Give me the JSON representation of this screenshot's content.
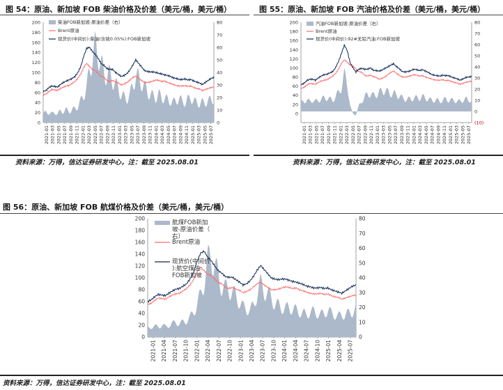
{
  "figures": [
    {
      "title": "图 54：原油、新加坡 FOB 柴油价格及价差（美元/桶，美元/桶）",
      "source": "资料来源：万得，信达证券研发中心，注：截至 2025.08.01"
    },
    {
      "title": "图 55：原油、新加坡 FOB 汽油价格及价差（美元/桶，美元/桶）",
      "source": "资料来源：万得，信达证券研发中心，注：截至 2025.08.01"
    },
    {
      "title": "图 56：原油、新加坡 FOB 航煤价格及价差（美元/桶，美元/桶）",
      "source": "资料来源：万得，信达证券研发中心，注：截至 2025.08.01"
    }
  ],
  "colors": {
    "spread": "#acb9ca",
    "brent": "#ff6b6b",
    "spot": "#0d2654"
  },
  "chart_data": [
    {
      "type": "area",
      "x_ticks": [
        "2021-01",
        "2021-03",
        "2021-05",
        "2021-07",
        "2021-09",
        "2021-11",
        "2022-01",
        "2022-03",
        "2022-05",
        "2022-07",
        "2022-09",
        "2022-11",
        "2023-01",
        "2023-03",
        "2023-05",
        "2023-07",
        "2023-09",
        "2023-11",
        "2024-01",
        "2024-03",
        "2024-05",
        "2024-07",
        "2024-09",
        "2024-11",
        "2025-01",
        "2025-03",
        "2025-05",
        "2025-07"
      ],
      "ylim_left": [
        0,
        200
      ],
      "yticks_left": [
        0,
        20,
        40,
        60,
        80,
        100,
        120,
        140,
        160,
        180,
        200
      ],
      "ylim_right": [
        0,
        80
      ],
      "yticks_right": [
        0,
        10,
        20,
        30,
        40,
        50,
        60,
        70,
        80
      ],
      "legend": [
        "柴油FOB新加坡-原油价差（右）",
        "Brent原油",
        "现货价(中间价):柴油(含硫0.05%):FOB新加坡"
      ],
      "series": [
        {
          "name": "柴油FOB新加坡-原油价差（右）",
          "axis": "right",
          "kind": "area",
          "values": [
            7,
            8,
            8,
            7,
            8,
            7,
            9,
            9,
            10,
            9,
            10,
            11,
            13,
            17,
            22,
            28,
            40,
            52,
            60,
            55,
            46,
            40,
            37,
            38,
            34,
            30,
            27,
            22,
            20,
            19,
            22,
            30,
            37,
            35,
            32,
            28,
            25,
            22,
            21,
            20,
            22,
            20,
            19,
            18,
            17,
            16,
            18,
            19,
            17,
            16,
            18,
            20,
            17,
            16,
            15,
            16,
            16,
            17,
            18,
            19
          ]
        },
        {
          "name": "Brent原油",
          "axis": "left",
          "kind": "line",
          "values": [
            55,
            57,
            62,
            66,
            65,
            64,
            68,
            71,
            73,
            74,
            78,
            82,
            88,
            97,
            110,
            118,
            112,
            106,
            104,
            98,
            92,
            90,
            84,
            82,
            84,
            81,
            79,
            75,
            77,
            80,
            85,
            90,
            93,
            88,
            84,
            80,
            80,
            81,
            83,
            85,
            84,
            82,
            83,
            80,
            78,
            76,
            74,
            73,
            73,
            74,
            72,
            73,
            70,
            68,
            67,
            64,
            66,
            68,
            70,
            71
          ]
        },
        {
          "name": "现货价(中间价):柴油(含硫0.05%):FOB新加坡",
          "axis": "left",
          "kind": "line",
          "values": [
            62,
            64,
            70,
            73,
            72,
            71,
            76,
            80,
            83,
            85,
            88,
            92,
            100,
            112,
            132,
            148,
            150,
            142,
            136,
            128,
            118,
            114,
            108,
            106,
            106,
            100,
            96,
            92,
            94,
            98,
            105,
            115,
            125,
            118,
            111,
            104,
            102,
            101,
            101,
            100,
            98,
            97,
            95,
            94,
            92,
            89,
            88,
            86,
            86,
            87,
            85,
            86,
            83,
            81,
            79,
            76,
            80,
            84,
            88,
            90
          ]
        }
      ]
    },
    {
      "type": "area",
      "x_ticks": [
        "2021-01",
        "2021-03",
        "2021-05",
        "2021-07",
        "2021-09",
        "2021-11",
        "2022-01",
        "2022-03",
        "2022-05",
        "2022-07",
        "2022-09",
        "2022-11",
        "2023-01",
        "2023-03",
        "2023-05",
        "2023-07",
        "2023-09",
        "2023-11",
        "2024-01",
        "2024-03",
        "2024-05",
        "2024-07",
        "2024-09",
        "2024-11",
        "2025-01",
        "2025-03",
        "2025-05",
        "2025-07"
      ],
      "ylim_left": [
        -20,
        200
      ],
      "yticks_left": [
        0,
        20,
        40,
        60,
        80,
        100,
        120,
        140,
        160,
        180,
        200
      ],
      "ylim_right": [
        -10,
        80
      ],
      "yticks_right": [
        -10,
        0,
        10,
        20,
        30,
        40,
        50,
        60,
        70,
        80
      ],
      "tick_colors_right": {
        "-10": "#c00000"
      },
      "legend": [
        "汽油FOB新加坡-原油价差（右）",
        "Brent原油",
        "现货价(中间价):92#无铅汽油:FOB新加坡"
      ],
      "series": [
        {
          "name": "汽油FOB新加坡-原油价差（右）",
          "axis": "right",
          "kind": "area",
          "values": [
            8,
            9,
            10,
            9,
            10,
            9,
            10,
            11,
            12,
            12,
            11,
            10,
            13,
            17,
            22,
            32,
            26,
            5,
            -2,
            -3,
            5,
            9,
            13,
            15,
            16,
            14,
            15,
            17,
            18,
            19,
            17,
            16,
            16,
            15,
            14,
            12,
            11,
            11,
            11,
            12,
            12,
            12,
            13,
            12,
            11,
            10,
            10,
            10,
            9,
            10,
            11,
            10,
            10,
            10,
            9,
            9,
            10,
            11,
            10,
            10
          ]
        },
        {
          "name": "Brent原油",
          "axis": "left",
          "kind": "line",
          "values": [
            55,
            57,
            62,
            66,
            65,
            64,
            68,
            71,
            73,
            74,
            78,
            82,
            88,
            97,
            110,
            118,
            112,
            106,
            104,
            98,
            92,
            90,
            84,
            82,
            84,
            81,
            79,
            75,
            77,
            80,
            85,
            90,
            93,
            88,
            84,
            80,
            80,
            81,
            83,
            85,
            84,
            82,
            83,
            80,
            78,
            76,
            74,
            73,
            73,
            74,
            72,
            73,
            70,
            68,
            67,
            64,
            66,
            68,
            70,
            71
          ]
        },
        {
          "name": "现货价(中间价):92#无铅汽油:FOB新加坡",
          "axis": "left",
          "kind": "line",
          "values": [
            63,
            66,
            72,
            75,
            75,
            73,
            78,
            82,
            85,
            86,
            89,
            92,
            101,
            114,
            132,
            150,
            138,
            111,
            100,
            91,
            97,
            99,
            97,
            97,
            100,
            95,
            94,
            93,
            95,
            99,
            102,
            106,
            109,
            103,
            98,
            92,
            91,
            92,
            94,
            97,
            96,
            94,
            96,
            93,
            90,
            86,
            84,
            83,
            82,
            84,
            83,
            83,
            80,
            78,
            76,
            73,
            76,
            79,
            80,
            81
          ]
        }
      ]
    },
    {
      "type": "area",
      "x_ticks": [
        "2021-01",
        "2021-04",
        "2021-07",
        "2021-10",
        "2022-01",
        "2022-04",
        "2022-07",
        "2022-10",
        "2023-01",
        "2023-04",
        "2023-07",
        "2023-10",
        "2024-01",
        "2024-04",
        "2024-07",
        "2024-10",
        "2025-01",
        "2025-04",
        "2025-07"
      ],
      "ylim_left": [
        0,
        200
      ],
      "yticks_left": [
        0,
        20,
        40,
        60,
        80,
        100,
        120,
        140,
        160,
        180,
        200
      ],
      "ylim_right": [
        0,
        80
      ],
      "yticks_right": [
        0,
        10,
        20,
        30,
        40,
        50,
        60,
        70,
        80
      ],
      "legend": [
        "航煤FOB新加坡-原油价差（右）",
        "Brent原油",
        "现货价(中间价):航空煤油:FOB新加坡"
      ],
      "series": [
        {
          "name": "航煤FOB新加坡-原油价差（右）",
          "axis": "right",
          "kind": "area",
          "values": [
            6,
            7,
            7,
            7,
            8,
            7,
            8,
            9,
            10,
            9,
            10,
            11,
            13,
            17,
            22,
            28,
            38,
            50,
            56,
            48,
            40,
            35,
            32,
            33,
            30,
            27,
            24,
            20,
            19,
            18,
            21,
            30,
            35,
            32,
            29,
            26,
            23,
            21,
            20,
            19,
            20,
            19,
            18,
            17,
            16,
            15,
            17,
            17,
            16,
            15,
            16,
            18,
            16,
            15,
            14,
            15,
            15,
            16,
            17,
            19
          ]
        },
        {
          "name": "Brent原油",
          "axis": "left",
          "kind": "line",
          "values": [
            55,
            57,
            62,
            66,
            65,
            64,
            68,
            71,
            73,
            74,
            78,
            82,
            88,
            97,
            110,
            118,
            112,
            106,
            104,
            98,
            92,
            90,
            84,
            82,
            84,
            81,
            79,
            75,
            77,
            80,
            85,
            90,
            93,
            88,
            84,
            80,
            80,
            81,
            83,
            85,
            84,
            82,
            83,
            80,
            78,
            76,
            74,
            73,
            73,
            74,
            72,
            73,
            70,
            68,
            67,
            64,
            66,
            68,
            70,
            71
          ]
        },
        {
          "name": "现货价(中间价):航空煤油:FOB新加坡",
          "axis": "left",
          "kind": "line",
          "values": [
            60,
            63,
            68,
            72,
            71,
            70,
            74,
            78,
            81,
            82,
            86,
            90,
            98,
            110,
            128,
            142,
            145,
            135,
            129,
            120,
            112,
            108,
            102,
            101,
            101,
            97,
            93,
            88,
            90,
            95,
            103,
            113,
            121,
            114,
            107,
            100,
            98,
            97,
            98,
            98,
            96,
            94,
            93,
            91,
            89,
            86,
            85,
            83,
            83,
            84,
            82,
            83,
            80,
            78,
            76,
            74,
            78,
            82,
            86,
            88
          ]
        }
      ]
    }
  ]
}
